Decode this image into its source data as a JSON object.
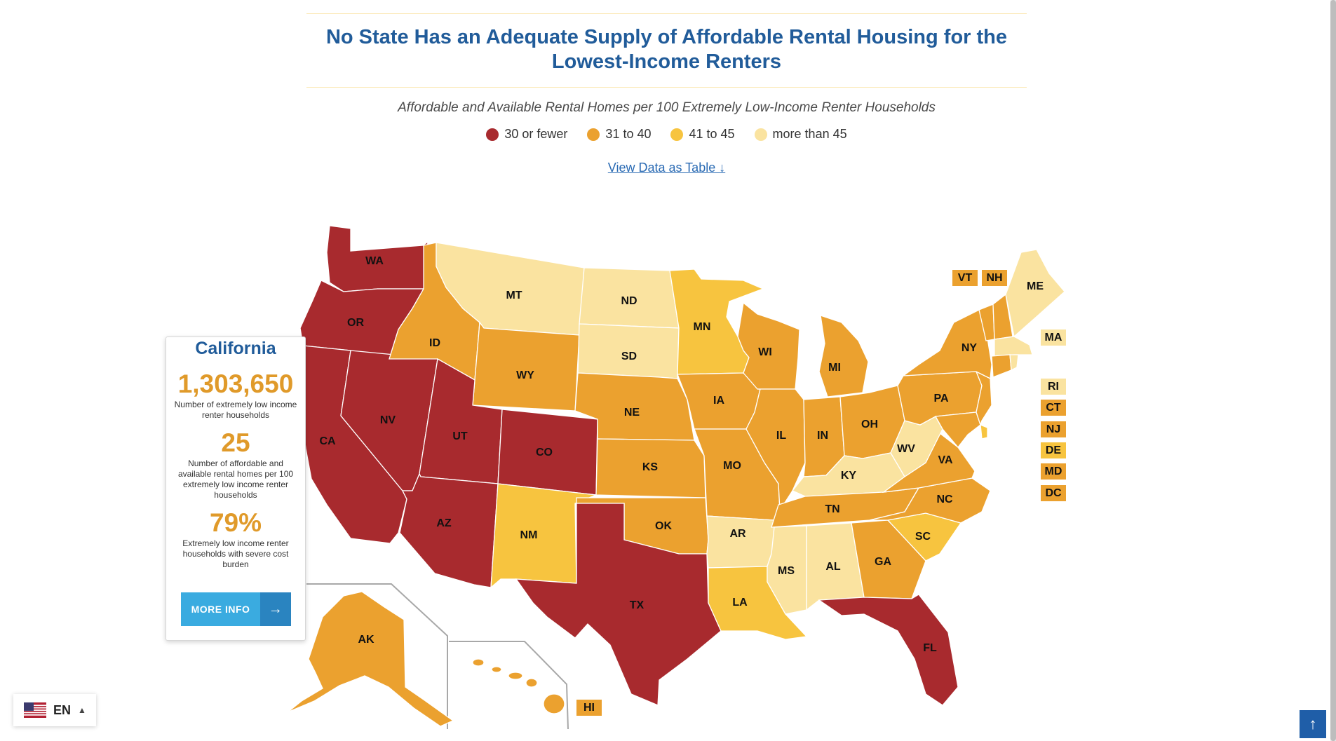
{
  "page": {
    "title": "No State Has an Adequate Supply of Affordable Rental Housing for the Lowest-Income Renters",
    "subtitle": "Affordable and Available Rental Homes per 100 Extremely Low-Income Renter Households",
    "view_table_link": "View Data as Table ↓"
  },
  "legend": [
    {
      "label": "30 or fewer",
      "color": "#a82a2e"
    },
    {
      "label": "31 to 40",
      "color": "#eba12f"
    },
    {
      "label": "41 to 45",
      "color": "#f7c43f"
    },
    {
      "label": "more than 45",
      "color": "#fae3a0"
    }
  ],
  "states": [
    {
      "code": "WA",
      "category": "30 or fewer"
    },
    {
      "code": "OR",
      "category": "30 or fewer"
    },
    {
      "code": "CA",
      "category": "30 or fewer"
    },
    {
      "code": "NV",
      "category": "30 or fewer"
    },
    {
      "code": "ID",
      "category": "31 to 40"
    },
    {
      "code": "MT",
      "category": "more than 45"
    },
    {
      "code": "WY",
      "category": "31 to 40"
    },
    {
      "code": "UT",
      "category": "30 or fewer"
    },
    {
      "code": "CO",
      "category": "30 or fewer"
    },
    {
      "code": "AZ",
      "category": "30 or fewer"
    },
    {
      "code": "NM",
      "category": "41 to 45"
    },
    {
      "code": "ND",
      "category": "more than 45"
    },
    {
      "code": "SD",
      "category": "more than 45"
    },
    {
      "code": "NE",
      "category": "31 to 40"
    },
    {
      "code": "KS",
      "category": "31 to 40"
    },
    {
      "code": "OK",
      "category": "31 to 40"
    },
    {
      "code": "TX",
      "category": "30 or fewer"
    },
    {
      "code": "MN",
      "category": "41 to 45"
    },
    {
      "code": "IA",
      "category": "31 to 40"
    },
    {
      "code": "MO",
      "category": "31 to 40"
    },
    {
      "code": "AR",
      "category": "more than 45"
    },
    {
      "code": "LA",
      "category": "41 to 45"
    },
    {
      "code": "WI",
      "category": "31 to 40"
    },
    {
      "code": "IL",
      "category": "31 to 40"
    },
    {
      "code": "MI",
      "category": "31 to 40"
    },
    {
      "code": "IN",
      "category": "31 to 40"
    },
    {
      "code": "OH",
      "category": "31 to 40"
    },
    {
      "code": "KY",
      "category": "more than 45"
    },
    {
      "code": "TN",
      "category": "31 to 40"
    },
    {
      "code": "MS",
      "category": "more than 45"
    },
    {
      "code": "AL",
      "category": "more than 45"
    },
    {
      "code": "GA",
      "category": "31 to 40"
    },
    {
      "code": "FL",
      "category": "30 or fewer"
    },
    {
      "code": "SC",
      "category": "41 to 45"
    },
    {
      "code": "NC",
      "category": "31 to 40"
    },
    {
      "code": "VA",
      "category": "31 to 40"
    },
    {
      "code": "WV",
      "category": "more than 45"
    },
    {
      "code": "PA",
      "category": "31 to 40"
    },
    {
      "code": "NY",
      "category": "31 to 40"
    },
    {
      "code": "ME",
      "category": "more than 45"
    },
    {
      "code": "AK",
      "category": "31 to 40"
    },
    {
      "code": "HI",
      "category": "31 to 40"
    },
    {
      "code": "VT",
      "category": "31 to 40"
    },
    {
      "code": "NH",
      "category": "31 to 40"
    },
    {
      "code": "MA",
      "category": "more than 45"
    },
    {
      "code": "RI",
      "category": "more than 45"
    },
    {
      "code": "CT",
      "category": "31 to 40"
    },
    {
      "code": "NJ",
      "category": "31 to 40"
    },
    {
      "code": "DE",
      "category": "41 to 45"
    },
    {
      "code": "MD",
      "category": "31 to 40"
    },
    {
      "code": "DC",
      "category": "31 to 40"
    }
  ],
  "info_card": {
    "state": "California",
    "households": "1,303,650",
    "households_caption": "Number of extremely low income renter households",
    "homes_per_100": "25",
    "homes_caption": "Number of affordable and available rental homes per 100 extremely low income renter households",
    "cost_burden": "79%",
    "cost_burden_caption": "Extremely low income renter households with severe cost burden",
    "button": "MORE INFO"
  },
  "language": {
    "code": "EN",
    "flag": "us-flag-icon"
  },
  "back_to_top": "arrow-up-icon"
}
